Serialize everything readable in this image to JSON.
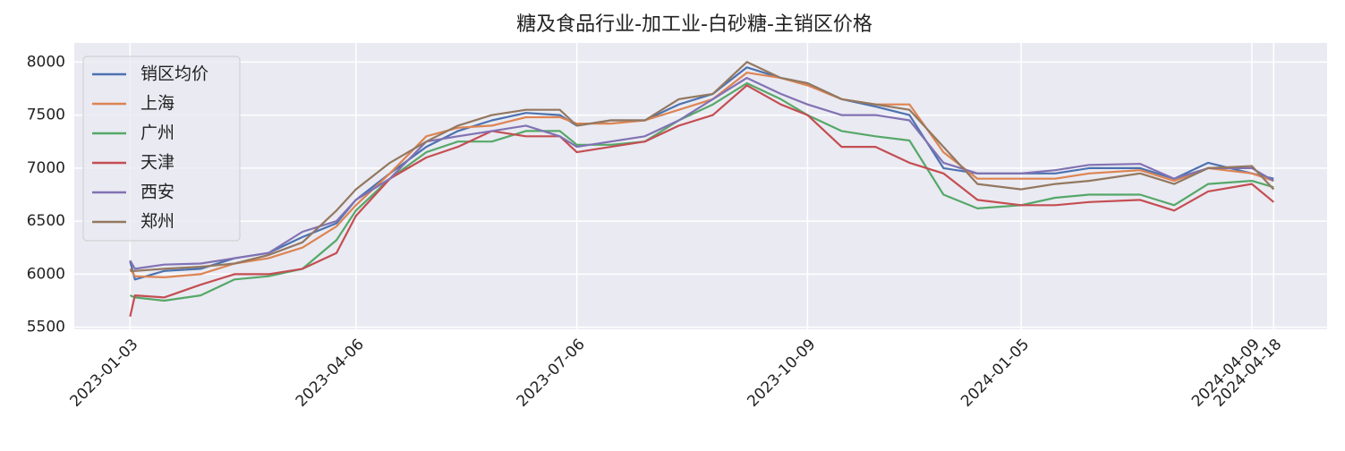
{
  "chart_data": {
    "type": "line",
    "title": "糖及食品行业-加工业-白砂糖-主销区价格",
    "x": [
      "2023-01-03",
      "2023-01-05",
      "2023-01-17",
      "2023-02-01",
      "2023-02-15",
      "2023-03-01",
      "2023-03-15",
      "2023-03-29",
      "2023-04-06",
      "2023-04-20",
      "2023-05-05",
      "2023-05-18",
      "2023-06-01",
      "2023-06-15",
      "2023-06-29",
      "2023-07-06",
      "2023-07-20",
      "2023-08-03",
      "2023-08-17",
      "2023-08-31",
      "2023-09-14",
      "2023-09-28",
      "2023-10-09",
      "2023-10-23",
      "2023-11-06",
      "2023-11-20",
      "2023-12-04",
      "2023-12-18",
      "2024-01-05",
      "2024-01-19",
      "2024-02-02",
      "2024-02-23",
      "2024-03-08",
      "2024-03-22",
      "2024-04-09",
      "2024-04-18"
    ],
    "series": [
      {
        "name": "销区均价",
        "color": "#4c72b0",
        "values": [
          6120,
          5950,
          6030,
          6050,
          6150,
          6200,
          6350,
          6480,
          6700,
          6950,
          7200,
          7350,
          7450,
          7520,
          7500,
          7400,
          7450,
          7450,
          7600,
          7700,
          7950,
          7850,
          7800,
          7650,
          7580,
          7500,
          7000,
          6950,
          6950,
          6950,
          7000,
          7000,
          6900,
          7050,
          6950,
          6900
        ]
      },
      {
        "name": "上海",
        "color": "#dd8452",
        "values": [
          6050,
          5980,
          5970,
          6000,
          6100,
          6150,
          6250,
          6450,
          6650,
          6950,
          7300,
          7380,
          7400,
          7480,
          7480,
          7420,
          7420,
          7450,
          7550,
          7650,
          7900,
          7850,
          7780,
          7650,
          7600,
          7600,
          7150,
          6900,
          6900,
          6900,
          6950,
          6980,
          6880,
          7000,
          6950,
          6880
        ]
      },
      {
        "name": "广州",
        "color": "#55a868",
        "values": [
          5800,
          5780,
          5750,
          5800,
          5950,
          5980,
          6050,
          6320,
          6600,
          6900,
          7150,
          7250,
          7250,
          7350,
          7350,
          7220,
          7220,
          7250,
          7450,
          7600,
          7800,
          7650,
          7500,
          7350,
          7300,
          7260,
          6750,
          6620,
          6650,
          6720,
          6750,
          6750,
          6650,
          6850,
          6880,
          6820
        ]
      },
      {
        "name": "天津",
        "color": "#c44e52",
        "values": [
          5600,
          5800,
          5780,
          5900,
          6000,
          6000,
          6050,
          6200,
          6550,
          6900,
          7100,
          7200,
          7350,
          7300,
          7300,
          7150,
          7200,
          7250,
          7400,
          7500,
          7780,
          7600,
          7500,
          7200,
          7200,
          7050,
          6950,
          6700,
          6650,
          6650,
          6680,
          6700,
          6600,
          6780,
          6850,
          6680
        ]
      },
      {
        "name": "西安",
        "color": "#8172b3",
        "values": [
          6130,
          6050,
          6090,
          6100,
          6150,
          6200,
          6400,
          6500,
          6700,
          6900,
          7250,
          7300,
          7350,
          7400,
          7300,
          7200,
          7250,
          7300,
          7450,
          7650,
          7850,
          7700,
          7600,
          7500,
          7500,
          7450,
          7050,
          6950,
          6950,
          6980,
          7030,
          7040,
          6900,
          7000,
          7000,
          6880
        ]
      },
      {
        "name": "郑州",
        "color": "#937860",
        "values": [
          6030,
          6030,
          6050,
          6070,
          6100,
          6180,
          6300,
          6600,
          6800,
          7050,
          7250,
          7400,
          7500,
          7550,
          7550,
          7400,
          7450,
          7450,
          7650,
          7700,
          8000,
          7850,
          7800,
          7650,
          7600,
          7550,
          7200,
          6850,
          6800,
          6850,
          6880,
          6950,
          6850,
          7000,
          7020,
          6800
        ]
      }
    ],
    "xlim": [
      "2022-12-11",
      "2024-05-10"
    ],
    "xticks": [
      "2023-01-03",
      "2023-04-06",
      "2023-07-06",
      "2023-10-09",
      "2024-01-05",
      "2024-04-09",
      "2024-04-18"
    ],
    "ylim": [
      5480,
      8180
    ],
    "yticks": [
      5500,
      6000,
      6500,
      7000,
      7500,
      8000
    ],
    "grid": true,
    "legend": "upper left"
  }
}
